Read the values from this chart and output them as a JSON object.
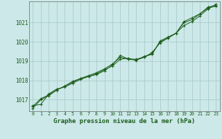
{
  "title": "Graphe pression niveau de la mer (hPa)",
  "background_color": "#cce8e8",
  "plot_bg_color": "#cce8e8",
  "grid_color": "#aacccc",
  "line_color": "#1a5c1a",
  "marker_color": "#1a5c1a",
  "xlim": [
    -0.5,
    23.5
  ],
  "ylim": [
    1016.4,
    1022.1
  ],
  "yticks": [
    1017,
    1018,
    1019,
    1020,
    1021
  ],
  "xticks": [
    0,
    1,
    2,
    3,
    4,
    5,
    6,
    7,
    8,
    9,
    10,
    11,
    12,
    13,
    14,
    15,
    16,
    17,
    18,
    19,
    20,
    21,
    22,
    23
  ],
  "series": [
    [
      1016.55,
      1017.0,
      1017.2,
      1017.5,
      1017.7,
      1017.9,
      1018.1,
      1018.2,
      1018.3,
      1018.5,
      1018.8,
      1019.3,
      1019.1,
      1019.1,
      1019.2,
      1019.4,
      1020.0,
      1020.2,
      1020.45,
      1021.0,
      1021.15,
      1021.45,
      1021.8,
      1021.9
    ],
    [
      1016.7,
      1016.75,
      1017.3,
      1017.55,
      1017.65,
      1017.85,
      1018.05,
      1018.2,
      1018.35,
      1018.55,
      1018.75,
      1019.1,
      1019.15,
      1019.05,
      1019.25,
      1019.35,
      1020.05,
      1020.25,
      1020.45,
      1020.85,
      1021.05,
      1021.35,
      1021.7,
      1021.95
    ],
    [
      1016.65,
      1017.05,
      1017.25,
      1017.5,
      1017.7,
      1017.95,
      1018.1,
      1018.25,
      1018.4,
      1018.6,
      1018.85,
      1019.2,
      1019.1,
      1019.05,
      1019.2,
      1019.45,
      1019.95,
      1020.2,
      1020.45,
      1021.05,
      1021.25,
      1021.45,
      1021.75,
      1021.85
    ]
  ],
  "title_fontsize": 6.5,
  "tick_fontsize": 5.5,
  "xtick_fontsize": 4.8
}
